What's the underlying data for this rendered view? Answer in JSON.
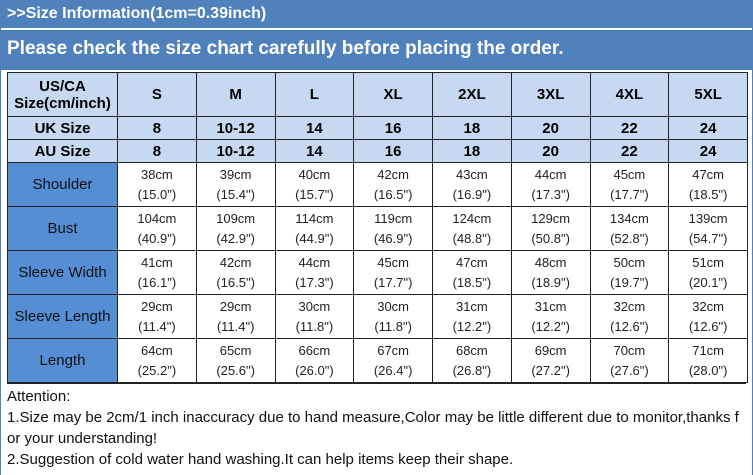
{
  "header": {
    "line1": ">>Size Information(1cm=0.39inch)",
    "line2": "Please check the size chart carefully before placing the order."
  },
  "table": {
    "corner": [
      "US/CA",
      "Size(cm/inch)"
    ],
    "sizes": [
      "S",
      "M",
      "L",
      "XL",
      "2XL",
      "3XL",
      "4XL",
      "5XL"
    ],
    "equivalents": [
      {
        "label": "UK Size",
        "values": [
          "8",
          "10-12",
          "14",
          "16",
          "18",
          "20",
          "22",
          "24"
        ]
      },
      {
        "label": "AU Size",
        "values": [
          "8",
          "10-12",
          "14",
          "16",
          "18",
          "20",
          "22",
          "24"
        ]
      }
    ],
    "measurements": [
      {
        "label": "Shoulder",
        "cm": [
          "38cm",
          "39cm",
          "40cm",
          "42cm",
          "43cm",
          "44cm",
          "45cm",
          "47cm"
        ],
        "inch": [
          "(15.0\")",
          "(15.4\")",
          "(15.7\")",
          "(16.5\")",
          "(16.9\")",
          "(17.3\")",
          "(17.7\")",
          "(18.5\")"
        ]
      },
      {
        "label": "Bust",
        "cm": [
          "104cm",
          "109cm",
          "114cm",
          "119cm",
          "124cm",
          "129cm",
          "134cm",
          "139cm"
        ],
        "inch": [
          "(40.9\")",
          "(42.9\")",
          "(44.9\")",
          "(46.9\")",
          "(48.8\")",
          "(50.8\")",
          "(52.8\")",
          "(54.7\")"
        ]
      },
      {
        "label": "Sleeve Width",
        "cm": [
          "41cm",
          "42cm",
          "44cm",
          "45cm",
          "47cm",
          "48cm",
          "50cm",
          "51cm"
        ],
        "inch": [
          "(16.1\")",
          "(16.5\")",
          "(17.3\")",
          "(17.7\")",
          "(18.5\")",
          "(18.9\")",
          "(19.7\")",
          "(20.1\")"
        ]
      },
      {
        "label": "Sleeve Length",
        "cm": [
          "29cm",
          "29cm",
          "30cm",
          "30cm",
          "31cm",
          "31cm",
          "32cm",
          "32cm"
        ],
        "inch": [
          "(11.4\")",
          "(11.4\")",
          "(11.8\")",
          "(11.8\")",
          "(12.2\")",
          "(12.2\")",
          "(12.6\")",
          "(12.6\")"
        ]
      },
      {
        "label": "Length",
        "cm": [
          "64cm",
          "65cm",
          "66cm",
          "67cm",
          "68cm",
          "69cm",
          "70cm",
          "71cm"
        ],
        "inch": [
          "(25.2\")",
          "(25.6\")",
          "(26.0\")",
          "(26.4\")",
          "(26.8\")",
          "(27.2\")",
          "(27.6\")",
          "(28.0\")"
        ]
      }
    ]
  },
  "notes": {
    "title": "Attention:",
    "items": [
      "1.Size may be 2cm/1 inch inaccuracy due to hand measure,Color may be little different due to monitor,thanks for your understanding!",
      "2.Suggestion of cold water hand washing.It can help items keep their shape."
    ]
  }
}
